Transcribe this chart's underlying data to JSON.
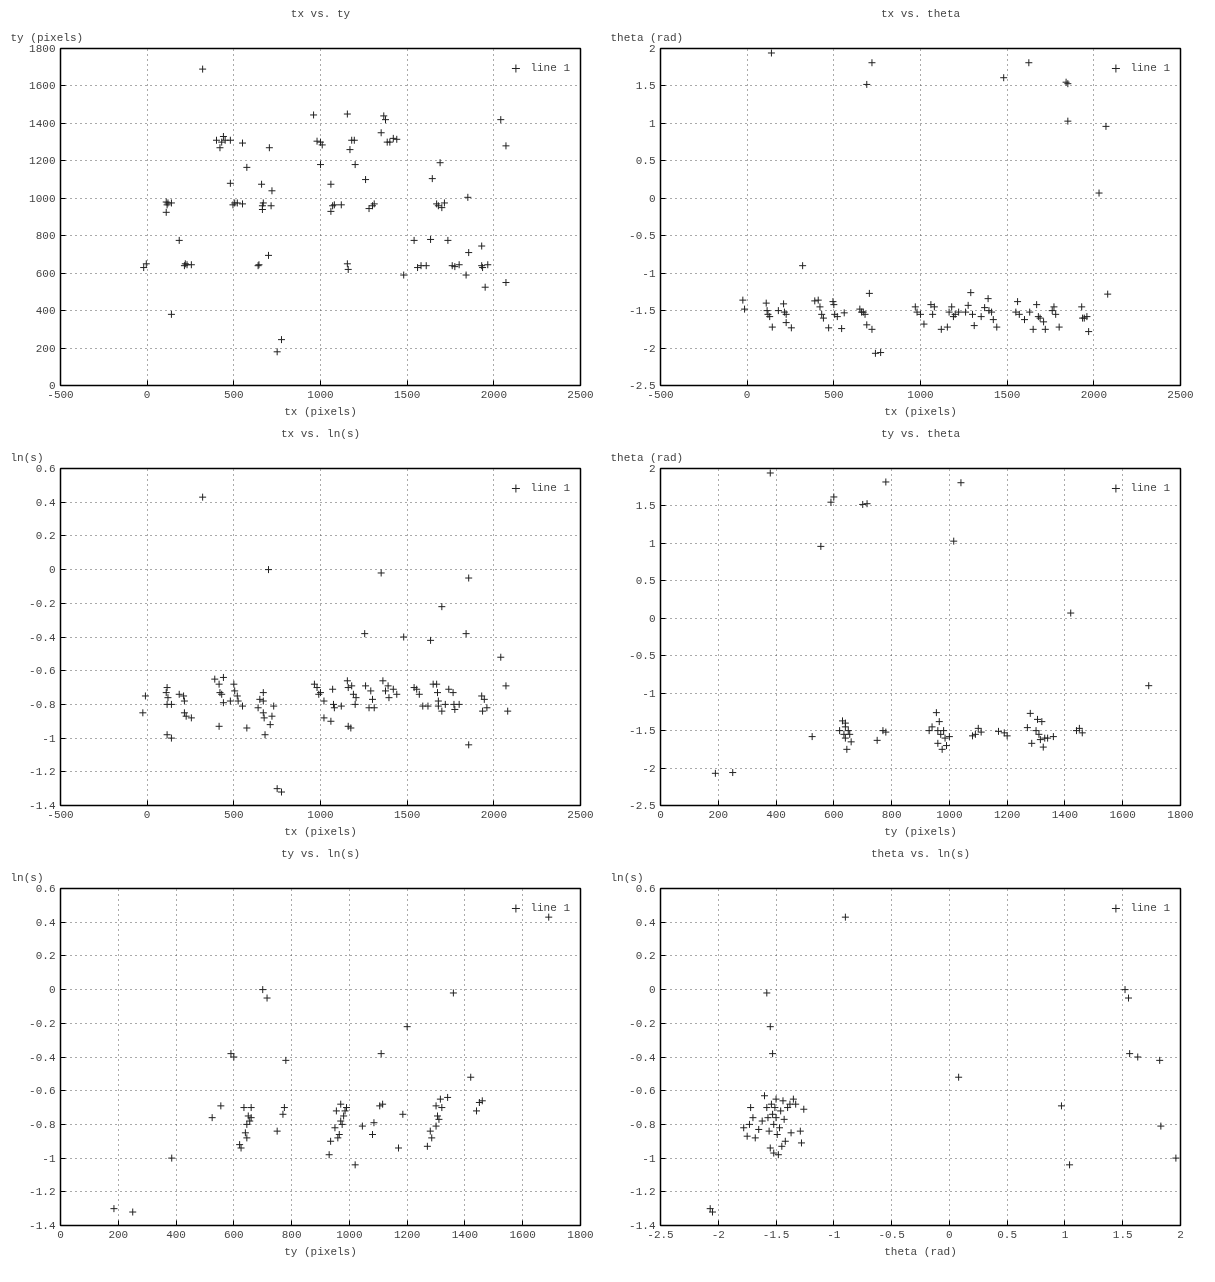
{
  "chart_data": [
    {
      "type": "scatter",
      "title": "tx vs. ty",
      "xlabel": "tx (pixels)",
      "ylabel": "ty (pixels)",
      "xlim": [
        -500,
        2500
      ],
      "ylim": [
        0,
        1800
      ],
      "xticks": [
        -500,
        0,
        500,
        1000,
        1500,
        2000,
        2500
      ],
      "yticks": [
        0,
        200,
        400,
        600,
        800,
        1000,
        1200,
        1400,
        1600,
        1800
      ],
      "grid": true,
      "legend": "top right",
      "marker": "cross",
      "series": [
        {
          "name": "line 1",
          "color": "#222222",
          "x": [
            320,
            -20,
            -5,
            110,
            115,
            120,
            140,
            110,
            140,
            185,
            215,
            220,
            230,
            255,
            400,
            420,
            430,
            440,
            450,
            480,
            480,
            495,
            505,
            520,
            550,
            550,
            575,
            640,
            645,
            660,
            665,
            665,
            670,
            700,
            705,
            720,
            715,
            750,
            775,
            960,
            980,
            1000,
            1010,
            1000,
            1060,
            1060,
            1070,
            1080,
            1120,
            1155,
            1155,
            1160,
            1170,
            1180,
            1195,
            1200,
            1260,
            1280,
            1300,
            1310,
            1350,
            1365,
            1375,
            1385,
            1400,
            1420,
            1440,
            1480,
            1540,
            1560,
            1580,
            1610,
            1635,
            1645,
            1670,
            1680,
            1690,
            1700,
            1715,
            1735,
            1760,
            1775,
            1800,
            1840,
            1850,
            1855,
            1930,
            1930,
            1935,
            1950,
            1965,
            2040,
            2070,
            2070
          ],
          "values": [
            1690,
            630,
            650,
            980,
            965,
            975,
            975,
            925,
            380,
            775,
            640,
            650,
            645,
            645,
            1310,
            1270,
            1300,
            1330,
            1310,
            1310,
            1080,
            965,
            975,
            975,
            970,
            1295,
            1165,
            640,
            645,
            1075,
            960,
            940,
            975,
            695,
            1270,
            1040,
            960,
            180,
            245,
            1445,
            1305,
            1300,
            1285,
            1180,
            1075,
            930,
            960,
            965,
            965,
            1450,
            650,
            620,
            1260,
            1310,
            1310,
            1180,
            1100,
            945,
            960,
            970,
            1350,
            1440,
            1420,
            1300,
            1300,
            1320,
            1315,
            590,
            775,
            630,
            640,
            640,
            780,
            1105,
            970,
            960,
            1190,
            950,
            975,
            775,
            640,
            635,
            645,
            590,
            1005,
            710,
            745,
            640,
            630,
            525,
            645,
            1420,
            1280,
            550
          ]
        }
      ]
    },
    {
      "type": "scatter",
      "title": "tx vs. theta",
      "xlabel": "tx (pixels)",
      "ylabel": "theta (rad)",
      "xlim": [
        -500,
        2500
      ],
      "ylim": [
        -2.5,
        2
      ],
      "xticks": [
        -500,
        0,
        500,
        1000,
        1500,
        2000,
        2500
      ],
      "yticks": [
        -2.5,
        -2,
        -1.5,
        -1,
        -0.5,
        0,
        0.5,
        1,
        1.5,
        2
      ],
      "grid": true,
      "legend": "top right",
      "marker": "cross",
      "series": [
        {
          "name": "line 1",
          "color": "#222222",
          "x": [
            -25,
            -15,
            110,
            115,
            120,
            130,
            145,
            180,
            210,
            215,
            225,
            225,
            255,
            140,
            320,
            390,
            410,
            420,
            430,
            440,
            470,
            495,
            500,
            505,
            520,
            545,
            560,
            650,
            660,
            670,
            680,
            690,
            705,
            720,
            690,
            720,
            740,
            770,
            970,
            980,
            1000,
            1020,
            1060,
            1070,
            1080,
            1120,
            1155,
            1165,
            1180,
            1190,
            1200,
            1220,
            1260,
            1275,
            1290,
            1300,
            1310,
            1350,
            1370,
            1390,
            1395,
            1410,
            1420,
            1440,
            1480,
            1550,
            1560,
            1570,
            1600,
            1625,
            1630,
            1650,
            1670,
            1680,
            1690,
            1710,
            1720,
            1760,
            1770,
            1780,
            1800,
            1840,
            1850,
            1850,
            1930,
            1935,
            1945,
            1960,
            1970,
            2030,
            2070,
            2080
          ],
          "values": [
            -1.36,
            -1.48,
            -1.4,
            -1.5,
            -1.55,
            -1.58,
            -1.72,
            -1.5,
            -1.41,
            -1.52,
            -1.55,
            -1.66,
            -1.73,
            1.94,
            -0.9,
            -1.37,
            -1.36,
            -1.45,
            -1.55,
            -1.6,
            -1.73,
            -1.38,
            -1.42,
            -1.55,
            -1.58,
            -1.74,
            -1.53,
            -1.48,
            -1.52,
            -1.52,
            -1.55,
            -1.69,
            -1.27,
            -1.75,
            1.52,
            1.81,
            -2.07,
            -2.06,
            -1.45,
            -1.52,
            -1.55,
            -1.68,
            -1.42,
            -1.55,
            -1.45,
            -1.75,
            -1.72,
            -1.52,
            -1.45,
            -1.58,
            -1.55,
            -1.52,
            -1.52,
            -1.43,
            -1.26,
            -1.55,
            -1.7,
            -1.58,
            -1.46,
            -1.34,
            -1.5,
            -1.52,
            -1.62,
            -1.72,
            1.61,
            -1.52,
            -1.38,
            -1.55,
            -1.62,
            1.81,
            -1.52,
            -1.75,
            -1.42,
            -1.58,
            -1.6,
            -1.65,
            -1.75,
            -1.5,
            -1.45,
            -1.55,
            -1.72,
            1.55,
            1.53,
            1.03,
            -1.45,
            -1.6,
            -1.6,
            -1.58,
            -1.78,
            0.07,
            0.96,
            -1.28
          ]
        }
      ]
    },
    {
      "type": "scatter",
      "title": "tx vs. ln(s)",
      "xlabel": "tx (pixels)",
      "ylabel": "ln(s)",
      "xlim": [
        -500,
        2500
      ],
      "ylim": [
        -1.4,
        0.6
      ],
      "xticks": [
        -500,
        0,
        500,
        1000,
        1500,
        2000,
        2500
      ],
      "yticks": [
        -1.4,
        -1.2,
        -1,
        -0.8,
        -0.6,
        -0.4,
        -0.2,
        0,
        0.2,
        0.4,
        0.6
      ],
      "grid": true,
      "legend": "top right",
      "marker": "cross",
      "series": [
        {
          "name": "line 1",
          "color": "#222222",
          "x": [
            -25,
            -10,
            110,
            115,
            120,
            115,
            140,
            115,
            140,
            185,
            210,
            215,
            215,
            225,
            255,
            320,
            390,
            415,
            420,
            430,
            440,
            440,
            415,
            480,
            500,
            505,
            520,
            525,
            550,
            575,
            640,
            650,
            670,
            670,
            675,
            670,
            680,
            700,
            710,
            720,
            730,
            750,
            775,
            965,
            980,
            990,
            1000,
            1020,
            1020,
            1060,
            1070,
            1075,
            1080,
            1120,
            1155,
            1160,
            1160,
            1175,
            1180,
            1190,
            1200,
            1205,
            1255,
            1260,
            1280,
            1290,
            1300,
            1310,
            1350,
            1360,
            1375,
            1390,
            1395,
            1420,
            1440,
            1480,
            1540,
            1555,
            1570,
            1590,
            1620,
            1635,
            1650,
            1670,
            1675,
            1680,
            1680,
            1700,
            1700,
            1720,
            1740,
            1765,
            1770,
            1775,
            1800,
            1840,
            1855,
            1855,
            1930,
            1935,
            1945,
            1960,
            2040,
            2070,
            2080
          ],
          "values": [
            -0.85,
            -0.75,
            -0.73,
            -0.7,
            -0.76,
            -0.8,
            -0.8,
            -0.98,
            -1.0,
            -0.74,
            -0.75,
            -0.78,
            -0.85,
            -0.87,
            -0.88,
            0.43,
            -0.65,
            -0.68,
            -0.73,
            -0.74,
            -0.64,
            -0.79,
            -0.93,
            -0.78,
            -0.68,
            -0.72,
            -0.75,
            -0.78,
            -0.81,
            -0.94,
            -0.82,
            -0.77,
            -0.73,
            -0.85,
            -0.88,
            -0.78,
            -0.98,
            0.0,
            -0.92,
            -0.87,
            -0.81,
            -1.3,
            -1.32,
            -0.68,
            -0.7,
            -0.74,
            -0.73,
            -0.78,
            -0.88,
            -0.9,
            -0.71,
            -0.8,
            -0.82,
            -0.81,
            -0.66,
            -0.7,
            -0.93,
            -0.94,
            -0.69,
            -0.74,
            -0.8,
            -0.76,
            -0.38,
            -0.69,
            -0.82,
            -0.72,
            -0.77,
            -0.82,
            -0.02,
            -0.66,
            -0.72,
            -0.69,
            -0.76,
            -0.71,
            -0.74,
            -0.4,
            -0.7,
            -0.71,
            -0.74,
            -0.81,
            -0.81,
            -0.42,
            -0.68,
            -0.68,
            -0.73,
            -0.78,
            -0.81,
            -0.22,
            -0.84,
            -0.8,
            -0.71,
            -0.73,
            -0.8,
            -0.83,
            -0.8,
            -0.38,
            -0.05,
            -1.04,
            -0.75,
            -0.84,
            -0.77,
            -0.82,
            -0.52,
            -0.69,
            -0.84
          ]
        }
      ]
    },
    {
      "type": "scatter",
      "title": "ty vs. theta",
      "xlabel": "ty (pixels)",
      "ylabel": "theta (rad)",
      "xlim": [
        0,
        1800
      ],
      "ylim": [
        -2.5,
        2
      ],
      "xticks": [
        0,
        200,
        400,
        600,
        800,
        1000,
        1200,
        1400,
        1600,
        1800
      ],
      "yticks": [
        -2.5,
        -2,
        -1.5,
        -1,
        -0.5,
        0,
        0.5,
        1,
        1.5,
        2
      ],
      "grid": true,
      "legend": "top right",
      "marker": "cross",
      "series": [
        {
          "name": "line 1",
          "color": "#222222",
          "x": [
            190,
            250,
            380,
            525,
            555,
            590,
            600,
            700,
            715,
            780,
            1040,
            1015,
            1420,
            1690,
            620,
            630,
            635,
            640,
            640,
            645,
            650,
            655,
            660,
            640,
            750,
            770,
            780,
            930,
            940,
            955,
            960,
            965,
            970,
            975,
            980,
            985,
            990,
            1000,
            960,
            1080,
            1090,
            1100,
            1110,
            1170,
            1190,
            1200,
            1270,
            1280,
            1285,
            1300,
            1305,
            1310,
            1315,
            1320,
            1325,
            1330,
            1340,
            1360,
            1440,
            1450,
            1460
          ],
          "values": [
            -2.07,
            -2.06,
            1.94,
            -1.58,
            0.96,
            1.55,
            1.62,
            1.52,
            1.53,
            1.82,
            1.81,
            1.03,
            0.07,
            -0.9,
            -1.5,
            -1.37,
            -1.55,
            -1.45,
            -1.6,
            -1.75,
            -1.5,
            -1.55,
            -1.65,
            -1.4,
            -1.63,
            -1.5,
            -1.52,
            -1.5,
            -1.45,
            -1.26,
            -1.5,
            -1.38,
            -1.55,
            -1.75,
            -1.5,
            -1.6,
            -1.7,
            -1.58,
            -1.67,
            -1.57,
            -1.55,
            -1.47,
            -1.52,
            -1.51,
            -1.53,
            -1.57,
            -1.46,
            -1.27,
            -1.67,
            -1.5,
            -1.35,
            -1.55,
            -1.62,
            -1.38,
            -1.72,
            -1.6,
            -1.6,
            -1.58,
            -1.5,
            -1.47,
            -1.53
          ]
        }
      ]
    },
    {
      "type": "scatter",
      "title": "ty vs. ln(s)",
      "xlabel": "ty (pixels)",
      "ylabel": "ln(s)",
      "xlim": [
        0,
        1800
      ],
      "ylim": [
        -1.4,
        0.6
      ],
      "xticks": [
        0,
        200,
        400,
        600,
        800,
        1000,
        1200,
        1400,
        1600,
        1800
      ],
      "yticks": [
        -1.4,
        -1.2,
        -1,
        -0.8,
        -0.6,
        -0.4,
        -0.2,
        0,
        0.2,
        0.4,
        0.6
      ],
      "grid": true,
      "legend": "top right",
      "marker": "cross",
      "series": [
        {
          "name": "line 1",
          "color": "#222222",
          "x": [
            185,
            250,
            385,
            525,
            555,
            590,
            600,
            620,
            625,
            635,
            640,
            645,
            645,
            650,
            655,
            660,
            660,
            700,
            715,
            750,
            770,
            775,
            780,
            930,
            935,
            950,
            955,
            960,
            965,
            970,
            970,
            975,
            980,
            985,
            990,
            1020,
            1045,
            1080,
            1085,
            1105,
            1110,
            1115,
            1170,
            1185,
            1200,
            1270,
            1280,
            1285,
            1300,
            1300,
            1305,
            1310,
            1315,
            1320,
            1340,
            1360,
            1420,
            1440,
            1450,
            1460,
            1690
          ],
          "values": [
            -1.3,
            -1.32,
            -1.0,
            -0.76,
            -0.69,
            -0.38,
            -0.4,
            -0.92,
            -0.94,
            -0.7,
            -0.85,
            -0.8,
            -0.88,
            -0.75,
            -0.78,
            -0.7,
            -0.76,
            0.0,
            -0.05,
            -0.84,
            -0.74,
            -0.7,
            -0.42,
            -0.98,
            -0.9,
            -0.82,
            -0.72,
            -0.88,
            -0.86,
            -0.68,
            -0.78,
            -0.8,
            -0.75,
            -0.72,
            -0.7,
            -1.04,
            -0.81,
            -0.86,
            -0.79,
            -0.69,
            -0.38,
            -0.68,
            -0.94,
            -0.74,
            -0.22,
            -0.93,
            -0.84,
            -0.88,
            -0.81,
            -0.69,
            -0.75,
            -0.77,
            -0.65,
            -0.7,
            -0.64,
            -0.02,
            -0.52,
            -0.72,
            -0.67,
            -0.66,
            0.43
          ]
        }
      ]
    },
    {
      "type": "scatter",
      "title": "theta vs. ln(s)",
      "xlabel": "theta (rad)",
      "ylabel": "ln(s)",
      "xlim": [
        -2.5,
        2
      ],
      "ylim": [
        -1.4,
        0.6
      ],
      "xticks": [
        -2.5,
        -2,
        -1.5,
        -1,
        -0.5,
        0,
        0.5,
        1,
        1.5,
        2
      ],
      "yticks": [
        -1.4,
        -1.2,
        -1,
        -0.8,
        -0.6,
        -0.4,
        -0.2,
        0,
        0.2,
        0.4,
        0.6
      ],
      "grid": true,
      "legend": "top right",
      "marker": "cross",
      "series": [
        {
          "name": "line 1",
          "color": "#222222",
          "x": [
            -2.07,
            -2.05,
            -1.78,
            -1.75,
            -1.73,
            -1.72,
            -1.7,
            -1.68,
            -1.65,
            -1.62,
            -1.6,
            -1.58,
            -1.58,
            -1.57,
            -1.56,
            -1.55,
            -1.55,
            -1.54,
            -1.53,
            -1.53,
            -1.52,
            -1.52,
            -1.51,
            -1.5,
            -1.5,
            -1.49,
            -1.48,
            -1.47,
            -1.46,
            -1.45,
            -1.44,
            -1.43,
            -1.42,
            -1.4,
            -1.38,
            -1.37,
            -1.35,
            -1.33,
            -1.29,
            -1.28,
            -1.26,
            -0.9,
            0.08,
            0.97,
            1.04,
            1.52,
            1.55,
            1.56,
            1.63,
            1.82,
            1.83,
            1.96
          ],
          "values": [
            -1.3,
            -1.32,
            -0.82,
            -0.87,
            -0.8,
            -0.7,
            -0.76,
            -0.88,
            -0.83,
            -0.78,
            -0.63,
            -0.02,
            -0.7,
            -0.76,
            -0.84,
            -0.22,
            -0.94,
            -0.68,
            -0.38,
            -0.74,
            -0.8,
            -0.97,
            -0.7,
            -0.65,
            -0.76,
            -0.86,
            -0.98,
            -0.82,
            -0.72,
            -0.93,
            -0.66,
            -0.77,
            -0.9,
            -0.7,
            -0.68,
            -0.85,
            -0.65,
            -0.68,
            -0.84,
            -0.91,
            -0.71,
            0.43,
            -0.52,
            -0.69,
            -1.04,
            0.0,
            -0.05,
            -0.38,
            -0.4,
            -0.42,
            -0.81,
            -1.0
          ]
        }
      ]
    }
  ]
}
